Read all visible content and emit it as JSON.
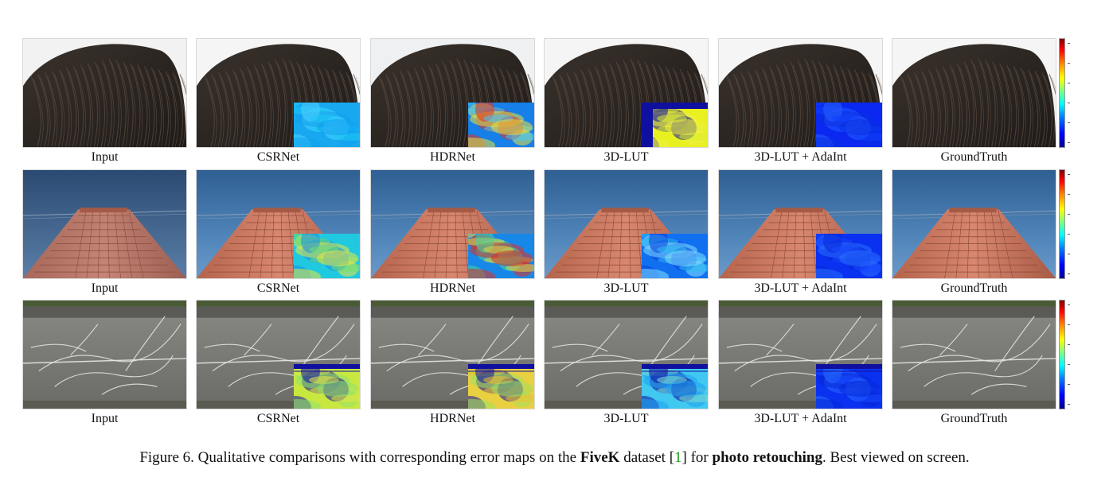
{
  "figure": {
    "rows": [
      {
        "scene": "feathers",
        "labels": [
          "Input",
          "CSRNet",
          "HDRNet",
          "3D-LUT",
          "3D-LUT + AdaInt",
          "GroundTruth"
        ]
      },
      {
        "scene": "tower",
        "labels": [
          "Input",
          "CSRNet",
          "HDRNet",
          "3D-LUT",
          "3D-LUT + AdaInt",
          "GroundTruth"
        ]
      },
      {
        "scene": "wall",
        "labels": [
          "Input",
          "CSRNet",
          "HDRNet",
          "3D-LUT",
          "3D-LUT + AdaInt",
          "GroundTruth"
        ]
      }
    ],
    "error_map_colormap": "jet",
    "colors": {
      "colormap_low": "#00008f",
      "colormap_high": "#800000",
      "citation": "#1a9a1a"
    }
  },
  "caption": {
    "prefix": "Figure 6. Qualitative comparisons with corresponding error maps on the ",
    "bold1": "FiveK",
    "mid1": " dataset [",
    "cite": "1",
    "mid2": "] for ",
    "bold2": "photo retouching",
    "suffix": ". Best viewed on screen."
  }
}
